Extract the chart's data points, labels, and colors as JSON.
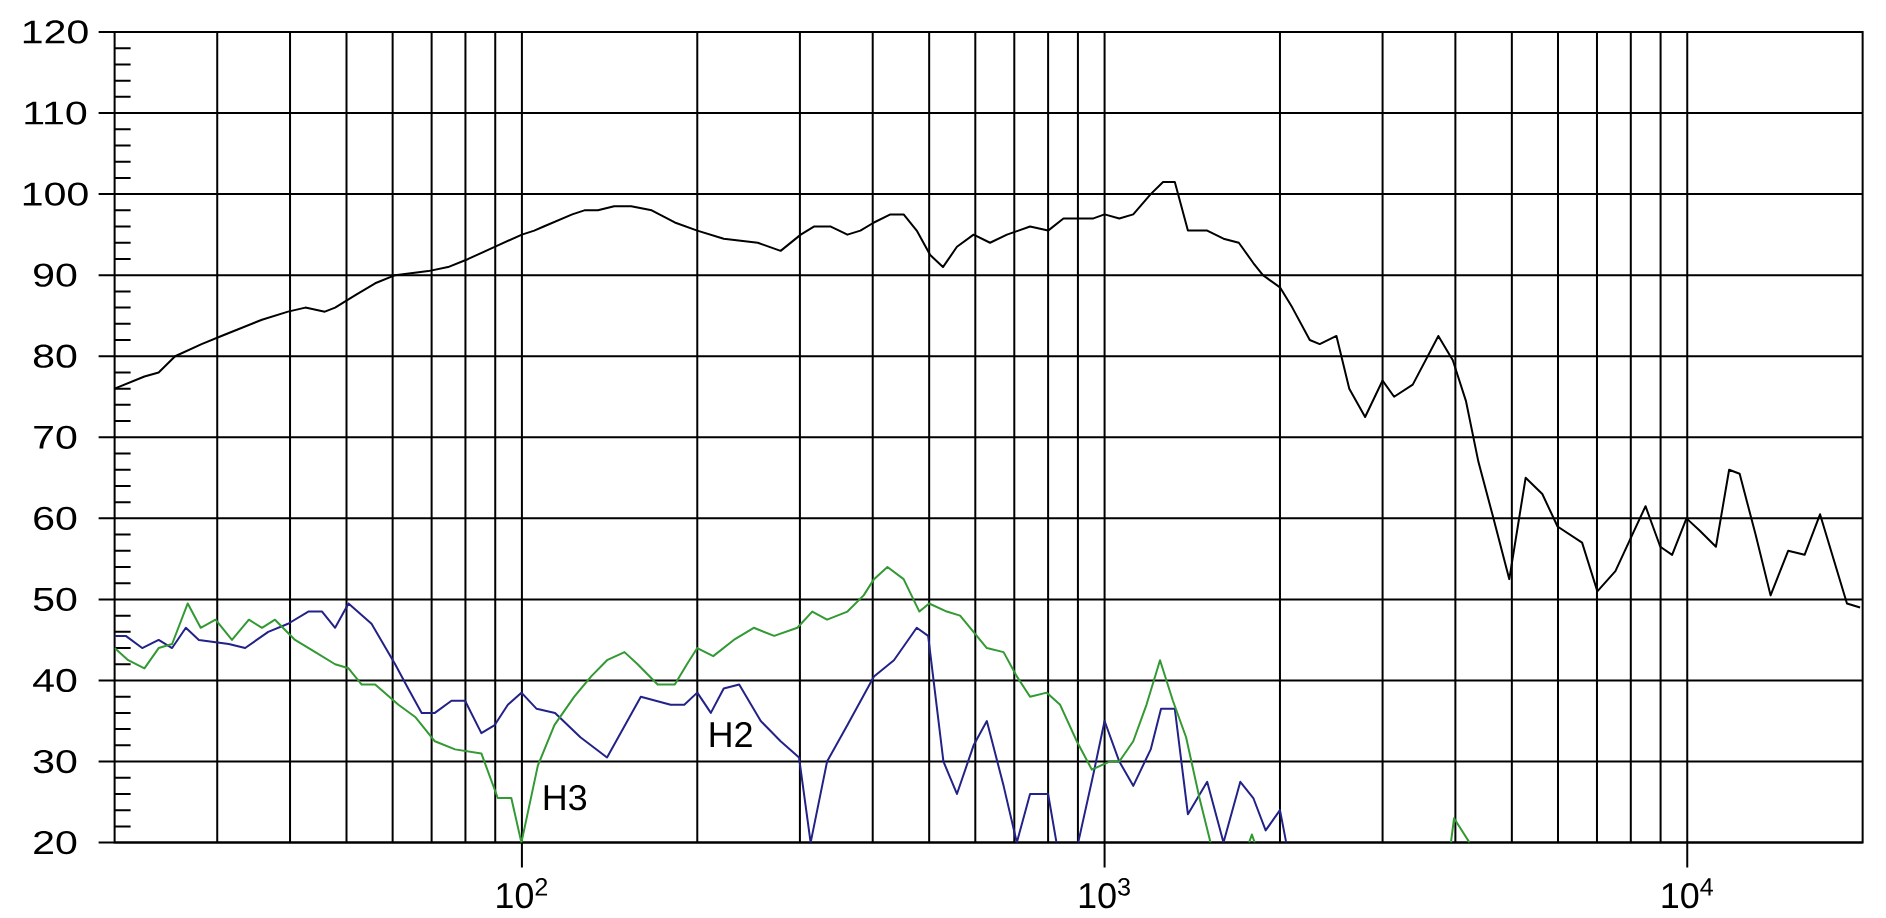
{
  "chart_data": {
    "type": "line",
    "log": "x",
    "grid": true,
    "xlim": [
      20,
      20000
    ],
    "ylim": [
      20,
      120
    ],
    "xticks": [
      {
        "value": 30,
        "label": null
      },
      {
        "value": 40,
        "label": null
      },
      {
        "value": 50,
        "label": null
      },
      {
        "value": 60,
        "label": null
      },
      {
        "value": 70,
        "label": null
      },
      {
        "value": 80,
        "label": null
      },
      {
        "value": 90,
        "label": null
      },
      {
        "value": 100,
        "label": "10$^{2}$"
      },
      {
        "value": 200,
        "label": null
      },
      {
        "value": 300,
        "label": null
      },
      {
        "value": 400,
        "label": null
      },
      {
        "value": 500,
        "label": null
      },
      {
        "value": 600,
        "label": null
      },
      {
        "value": 700,
        "label": null
      },
      {
        "value": 800,
        "label": null
      },
      {
        "value": 900,
        "label": null
      },
      {
        "value": 1000,
        "label": "10$^{3}$"
      },
      {
        "value": 2000,
        "label": null
      },
      {
        "value": 3000,
        "label": null
      },
      {
        "value": 4000,
        "label": null
      },
      {
        "value": 5000,
        "label": null
      },
      {
        "value": 6000,
        "label": null
      },
      {
        "value": 7000,
        "label": null
      },
      {
        "value": 8000,
        "label": null
      },
      {
        "value": 9000,
        "label": null
      },
      {
        "value": 10000,
        "label": "10$^{4}$"
      }
    ],
    "yticks": [
      20,
      30,
      40,
      50,
      60,
      70,
      80,
      90,
      100,
      110,
      120
    ],
    "series": [
      {
        "color": "#000000",
        "x": [
          20,
          22.5,
          23.8,
          25.4,
          28.2,
          30.5,
          35.8,
          39.7,
          42.5,
          45.9,
          47.8,
          51.7,
          56,
          60.6,
          69.1,
          74.7,
          80.9,
          89.8,
          100,
          105,
          109,
          122,
          128,
          135,
          144,
          154,
          167,
          183,
          200,
          222,
          254,
          278,
          301,
          317,
          339,
          362,
          381,
          402,
          429,
          452,
          476,
          502,
          528,
          558,
          596,
          636,
          680,
          745,
          800,
          850,
          957,
          1000,
          1060,
          1120,
          1200,
          1260,
          1320,
          1390,
          1500,
          1600,
          1700,
          1800,
          1870,
          2000,
          2100,
          2250,
          2340,
          2500,
          2630,
          2800,
          3000,
          3140,
          3380,
          3740,
          3960,
          4170,
          4380,
          4630,
          4950,
          5280,
          5640,
          5990,
          6600,
          7010,
          7530,
          8480,
          8990,
          9420,
          9970,
          10500,
          11200,
          11800,
          12300,
          13100,
          13900,
          14900,
          15900,
          16900,
          18800,
          19800
        ],
        "values": [
          76,
          77.5,
          78,
          80,
          81.5,
          82.5,
          84.5,
          85.5,
          86,
          85.5,
          86,
          87.5,
          89,
          90,
          90.5,
          91,
          92,
          93.5,
          95,
          95.5,
          96,
          97.5,
          98,
          98,
          98.5,
          98.5,
          98,
          96.5,
          95.5,
          94.5,
          94,
          93,
          95,
          96,
          96,
          95,
          95.5,
          96.5,
          97.5,
          97.5,
          95.5,
          92.5,
          91,
          93.5,
          95,
          94,
          95,
          96,
          95.5,
          97,
          97,
          97.5,
          97,
          97.5,
          100,
          101.5,
          101.5,
          95.5,
          95.5,
          94.5,
          94,
          91.5,
          90,
          88.5,
          86,
          82,
          81.5,
          82.5,
          76,
          72.5,
          77,
          75,
          76.5,
          82.5,
          79.5,
          74.5,
          67,
          60.5,
          52.5,
          65,
          63,
          59,
          57,
          51,
          53.5,
          61.5,
          56.5,
          55.5,
          60,
          58.5,
          56.5,
          66,
          65.5,
          58,
          50.5,
          56,
          55.5,
          60.5,
          49.5,
          49
        ]
      },
      {
        "name": "H2",
        "color": "#222288",
        "x": [
          20,
          20.9,
          22.3,
          23.8,
          25.1,
          26.5,
          27.9,
          31.4,
          33.5,
          36.7,
          39.7,
          43,
          45.4,
          47.8,
          50.4,
          55.2,
          60.6,
          63.8,
          67.3,
          70.9,
          75.7,
          79.9,
          85.2,
          89.8,
          94.6,
          99.8,
          106,
          114,
          126,
          140,
          160,
          180,
          190,
          200,
          211,
          222,
          236,
          257,
          278,
          299,
          313,
          334,
          362,
          402,
          435,
          476,
          498,
          529,
          558,
          596,
          628,
          671,
          707,
          745,
          800,
          827,
          860,
          901,
          957,
          1000,
          1060,
          1120,
          1200,
          1250,
          1320,
          1390,
          1500,
          1600,
          1710,
          1800,
          1890,
          2000,
          2050
        ],
        "values": [
          45.5,
          45.5,
          44,
          45,
          44,
          46.5,
          45,
          44.5,
          44,
          46,
          47,
          48.5,
          48.5,
          46.5,
          49.5,
          47,
          42,
          39,
          36,
          36,
          37.5,
          37.5,
          33.5,
          34.5,
          37,
          38.5,
          36.5,
          36,
          33,
          30.5,
          38,
          37,
          37,
          38.5,
          36,
          39,
          39.5,
          35,
          32.5,
          30.5,
          20,
          30,
          34.5,
          40.5,
          42.5,
          46.5,
          45.5,
          30,
          26,
          32,
          35,
          27,
          20,
          26,
          26,
          20,
          null,
          20,
          28.5,
          35,
          30,
          27,
          31.5,
          36.5,
          36.5,
          23.5,
          27.5,
          20,
          27.5,
          25.5,
          21.5,
          24,
          20
        ]
      },
      {
        "name": "H3",
        "color": "#339933",
        "x": [
          20,
          21.1,
          22.5,
          23.8,
          25.1,
          26.7,
          28.1,
          29.8,
          31.8,
          34,
          35.8,
          37.7,
          40.8,
          44.2,
          47.8,
          50.4,
          53.1,
          56,
          61.4,
          65.6,
          70.9,
          76.8,
          85.2,
          90.9,
          95.9,
          99.8,
          106.5,
          113.7,
          123,
          131.5,
          140,
          150,
          158,
          171,
          183,
          192,
          200,
          213,
          231,
          250,
          271,
          297,
          315,
          334,
          362,
          386,
          402,
          424,
          452,
          481,
          500,
          536,
          565,
          588,
          628,
          671,
          707,
          745,
          796,
          839,
          896,
          951,
          1020,
          1060,
          1120,
          1180,
          1245,
          1310,
          1380,
          1455,
          1520,
          1650,
          1770,
          1790,
          1810,
          2800,
          3930,
          3980,
          4230
        ],
        "values": [
          44,
          42.5,
          41.5,
          44,
          44.5,
          49.5,
          46.5,
          47.5,
          45,
          47.5,
          46.5,
          47.5,
          45,
          43.5,
          42,
          41.5,
          39.5,
          39.5,
          37,
          35.5,
          32.5,
          31.5,
          31,
          25.5,
          25.5,
          20,
          29.5,
          34.5,
          38,
          40.5,
          42.5,
          43.5,
          42,
          39.5,
          39.5,
          42,
          44,
          43,
          45,
          46.5,
          45.5,
          46.5,
          48.5,
          47.5,
          48.5,
          50.5,
          52.5,
          54,
          52.5,
          48.5,
          49.5,
          48.5,
          48,
          46.5,
          44,
          43.5,
          40.5,
          38,
          38.5,
          37,
          32.5,
          29,
          30,
          30,
          32.5,
          37,
          42.5,
          37.5,
          33,
          25.5,
          20,
          null,
          20,
          21,
          20,
          null,
          20,
          23,
          20
        ]
      }
    ]
  }
}
